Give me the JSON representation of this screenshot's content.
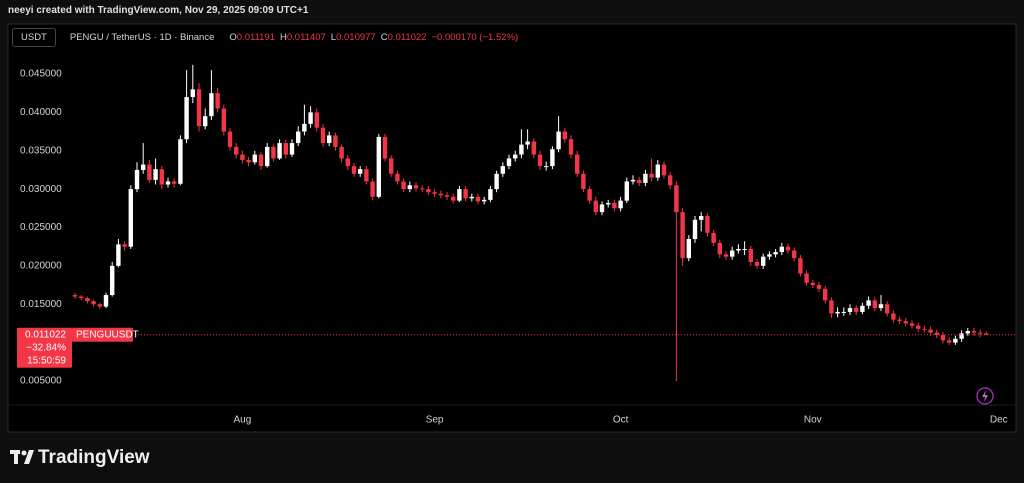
{
  "attribution": "neeyi created with TradingView.com, Nov 29, 2025 09:09 UTC+1",
  "logo": "TradingView",
  "chart_data": {
    "type": "candlestick",
    "title": "PENGU / TetherUS · 1D · Binance",
    "currency": "USDT",
    "symbol": "PENGUUSDT",
    "ohlc_labels": [
      "O",
      "H",
      "L",
      "C"
    ],
    "change": "−0.000170 (−1.52%)",
    "change_percent": "−32.84%",
    "countdown": "15:50:59",
    "up_color": "#ffffff",
    "down_color": "#f23645",
    "ylim": [
      0.00187,
      0.04943
    ],
    "yticks": [
      {
        "value": 0.045,
        "label": "0.045000"
      },
      {
        "value": 0.04,
        "label": "0.040000"
      },
      {
        "value": 0.035,
        "label": "0.035000"
      },
      {
        "value": 0.03,
        "label": "0.030000"
      },
      {
        "value": 0.025,
        "label": "0.025000"
      },
      {
        "value": 0.02,
        "label": "0.020000"
      },
      {
        "value": 0.015,
        "label": "0.015000"
      },
      {
        "value": 0.005,
        "label": "0.005000"
      }
    ],
    "grid": false,
    "categories": [
      null,
      null,
      null,
      null,
      null,
      null,
      null,
      null,
      null,
      null,
      null,
      null,
      null,
      null,
      null,
      null,
      null,
      null,
      null,
      null,
      null,
      null,
      null,
      null,
      null,
      null,
      null,
      "Aug",
      null,
      null,
      null,
      null,
      null,
      null,
      null,
      null,
      null,
      null,
      null,
      null,
      null,
      null,
      null,
      null,
      null,
      null,
      null,
      null,
      null,
      null,
      null,
      null,
      null,
      null,
      null,
      null,
      null,
      null,
      "Sep",
      null,
      null,
      null,
      null,
      null,
      null,
      null,
      null,
      null,
      null,
      null,
      null,
      null,
      null,
      null,
      null,
      null,
      null,
      null,
      null,
      null,
      null,
      null,
      null,
      null,
      null,
      null,
      null,
      null,
      "Oct",
      null,
      null,
      null,
      null,
      null,
      null,
      null,
      null,
      null,
      null,
      null,
      null,
      null,
      null,
      null,
      null,
      null,
      null,
      null,
      null,
      null,
      null,
      null,
      null,
      null,
      null,
      null,
      null,
      null,
      null,
      "Nov",
      null,
      null,
      null,
      null,
      null,
      null,
      null,
      null,
      null,
      null,
      null,
      null,
      null,
      null,
      null,
      null,
      null,
      null,
      null,
      null,
      null,
      null,
      null,
      null,
      null,
      null,
      null,
      null,
      null,
      "Dec"
    ],
    "open": [
      0.0162,
      0.016,
      0.0158,
      0.0154,
      0.015,
      0.0147,
      0.0162,
      0.02,
      0.0228,
      0.0225,
      0.03,
      0.0325,
      0.0332,
      0.0312,
      0.0326,
      0.0306,
      0.031,
      0.0307,
      0.0365,
      0.042,
      0.043,
      0.0382,
      0.0395,
      0.0425,
      0.0405,
      0.0375,
      0.0355,
      0.0345,
      0.0338,
      0.0335,
      0.0345,
      0.033,
      0.0355,
      0.034,
      0.036,
      0.0345,
      0.036,
      0.0375,
      0.0385,
      0.04,
      0.038,
      0.036,
      0.037,
      0.0355,
      0.034,
      0.033,
      0.032,
      0.0326,
      0.031,
      0.029,
      0.0368,
      0.034,
      0.032,
      0.031,
      0.03,
      0.0305,
      0.0301,
      0.03,
      0.0296,
      0.0294,
      0.0292,
      0.029,
      0.0285,
      0.03,
      0.0288,
      0.029,
      0.0284,
      0.0286,
      0.03,
      0.032,
      0.033,
      0.034,
      0.0345,
      0.0358,
      0.0362,
      0.0345,
      0.033,
      0.033,
      0.0352,
      0.0375,
      0.0365,
      0.0345,
      0.032,
      0.03,
      0.0285,
      0.027,
      0.028,
      0.0282,
      0.0275,
      0.0285,
      0.031,
      0.0312,
      0.0308,
      0.032,
      0.0315,
      0.0332,
      0.0318,
      0.0305,
      0.027,
      0.021,
      0.0235,
      0.026,
      0.0265,
      0.0243,
      0.023,
      0.0215,
      0.0212,
      0.022,
      0.0222,
      0.0222,
      0.0205,
      0.02,
      0.0212,
      0.0215,
      0.0218,
      0.0225,
      0.022,
      0.021,
      0.019,
      0.0178,
      0.0175,
      0.017,
      0.0155,
      0.0138,
      0.014,
      0.014,
      0.0145,
      0.014,
      0.0148,
      0.0155,
      0.0145,
      0.015,
      0.0138,
      0.013,
      0.0128,
      0.0125,
      0.0122,
      0.0118,
      0.0117,
      0.0113,
      0.011,
      0.0103,
      0.01,
      0.0105,
      0.0112,
      0.0115,
      0.0113,
      0.011191,
      null,
      null
    ],
    "high": [
      0.0165,
      0.0162,
      0.016,
      0.0156,
      0.0152,
      0.0165,
      0.0205,
      0.0235,
      0.0232,
      0.0305,
      0.0335,
      0.036,
      0.0338,
      0.034,
      0.033,
      0.0315,
      0.0314,
      0.037,
      0.0455,
      0.0462,
      0.0438,
      0.0405,
      0.0455,
      0.0432,
      0.041,
      0.038,
      0.036,
      0.035,
      0.0342,
      0.035,
      0.0348,
      0.036,
      0.0358,
      0.0365,
      0.0364,
      0.0365,
      0.0382,
      0.041,
      0.0408,
      0.0405,
      0.0385,
      0.0375,
      0.0374,
      0.0358,
      0.0344,
      0.0334,
      0.033,
      0.033,
      0.0314,
      0.0372,
      0.0372,
      0.0344,
      0.0324,
      0.0314,
      0.031,
      0.0309,
      0.0305,
      0.0304,
      0.03,
      0.0298,
      0.0296,
      0.0294,
      0.0304,
      0.0304,
      0.0294,
      0.0294,
      0.029,
      0.0304,
      0.0324,
      0.0335,
      0.0345,
      0.035,
      0.0378,
      0.0378,
      0.0366,
      0.035,
      0.0336,
      0.0356,
      0.0395,
      0.038,
      0.037,
      0.035,
      0.0324,
      0.0304,
      0.029,
      0.0284,
      0.0286,
      0.0286,
      0.029,
      0.0315,
      0.0318,
      0.0316,
      0.0325,
      0.034,
      0.0338,
      0.0336,
      0.0322,
      0.031,
      0.0275,
      0.024,
      0.0265,
      0.027,
      0.0269,
      0.0247,
      0.0234,
      0.0219,
      0.0225,
      0.0228,
      0.0232,
      0.0226,
      0.0209,
      0.0216,
      0.0219,
      0.0222,
      0.023,
      0.0229,
      0.0224,
      0.0214,
      0.0194,
      0.0182,
      0.0179,
      0.0174,
      0.0159,
      0.0146,
      0.0146,
      0.015,
      0.0149,
      0.0152,
      0.016,
      0.0159,
      0.0162,
      0.0154,
      0.0142,
      0.0134,
      0.0132,
      0.0129,
      0.0126,
      0.0122,
      0.0121,
      0.0117,
      0.0114,
      0.0107,
      0.0109,
      0.0116,
      0.0119,
      0.0119,
      0.0117,
      0.011407,
      null,
      null
    ],
    "low": [
      0.0157,
      0.0155,
      0.0151,
      0.0147,
      0.0144,
      0.0145,
      0.016,
      0.0198,
      0.022,
      0.0222,
      0.0296,
      0.032,
      0.0308,
      0.0306,
      0.03,
      0.0302,
      0.0302,
      0.0305,
      0.036,
      0.0412,
      0.0375,
      0.0378,
      0.039,
      0.04,
      0.037,
      0.035,
      0.034,
      0.0333,
      0.033,
      0.0332,
      0.0325,
      0.0328,
      0.0336,
      0.0338,
      0.034,
      0.0342,
      0.0356,
      0.037,
      0.038,
      0.0375,
      0.0355,
      0.0356,
      0.035,
      0.0335,
      0.0325,
      0.0316,
      0.0316,
      0.0306,
      0.0286,
      0.0288,
      0.0336,
      0.0316,
      0.0306,
      0.0296,
      0.0296,
      0.0297,
      0.0296,
      0.0292,
      0.029,
      0.0288,
      0.0286,
      0.0281,
      0.0283,
      0.0284,
      0.0284,
      0.028,
      0.028,
      0.0283,
      0.0296,
      0.0316,
      0.0326,
      0.0336,
      0.034,
      0.0352,
      0.034,
      0.0325,
      0.0324,
      0.0326,
      0.0348,
      0.036,
      0.034,
      0.0316,
      0.0296,
      0.0281,
      0.0266,
      0.0266,
      0.0276,
      0.0271,
      0.0271,
      0.0282,
      0.0306,
      0.0304,
      0.0304,
      0.031,
      0.0311,
      0.0314,
      0.03,
      0.005,
      0.02,
      0.0206,
      0.023,
      0.0245,
      0.0238,
      0.0226,
      0.021,
      0.0208,
      0.0208,
      0.0216,
      0.0214,
      0.02,
      0.0196,
      0.0196,
      0.0208,
      0.0211,
      0.0214,
      0.0216,
      0.0206,
      0.0186,
      0.0174,
      0.0171,
      0.0166,
      0.0151,
      0.0132,
      0.0133,
      0.0135,
      0.0136,
      0.0136,
      0.0137,
      0.0144,
      0.0141,
      0.0141,
      0.0134,
      0.0126,
      0.0124,
      0.0121,
      0.0118,
      0.0114,
      0.0113,
      0.0109,
      0.0106,
      0.0099,
      0.0097,
      0.0097,
      0.0101,
      0.0109,
      0.0109,
      0.0107,
      0.010977,
      null,
      null
    ],
    "close": [
      0.016,
      0.0158,
      0.0154,
      0.015,
      0.0147,
      0.0162,
      0.02,
      0.0228,
      0.0225,
      0.03,
      0.0325,
      0.0332,
      0.0312,
      0.0326,
      0.0306,
      0.031,
      0.0307,
      0.0365,
      0.042,
      0.043,
      0.0382,
      0.0395,
      0.0425,
      0.0405,
      0.0375,
      0.0355,
      0.0345,
      0.0338,
      0.0335,
      0.0345,
      0.033,
      0.0355,
      0.034,
      0.036,
      0.0345,
      0.036,
      0.0375,
      0.0385,
      0.04,
      0.038,
      0.036,
      0.037,
      0.0355,
      0.034,
      0.033,
      0.032,
      0.0326,
      0.031,
      0.029,
      0.0368,
      0.034,
      0.032,
      0.031,
      0.03,
      0.0305,
      0.0301,
      0.03,
      0.0296,
      0.0294,
      0.0292,
      0.029,
      0.0285,
      0.03,
      0.0288,
      0.029,
      0.0284,
      0.0286,
      0.03,
      0.032,
      0.033,
      0.034,
      0.0345,
      0.0358,
      0.0362,
      0.0345,
      0.033,
      0.033,
      0.0352,
      0.0375,
      0.0365,
      0.0345,
      0.032,
      0.03,
      0.0285,
      0.027,
      0.028,
      0.0282,
      0.0275,
      0.0285,
      0.031,
      0.0312,
      0.0308,
      0.032,
      0.0315,
      0.0332,
      0.0318,
      0.0305,
      0.027,
      0.021,
      0.0235,
      0.026,
      0.0265,
      0.0243,
      0.023,
      0.0215,
      0.0212,
      0.022,
      0.0222,
      0.0222,
      0.0205,
      0.02,
      0.0212,
      0.0215,
      0.0218,
      0.0225,
      0.022,
      0.021,
      0.019,
      0.0178,
      0.0175,
      0.017,
      0.0155,
      0.0138,
      0.014,
      0.014,
      0.0145,
      0.014,
      0.0148,
      0.0155,
      0.0145,
      0.015,
      0.0138,
      0.013,
      0.0128,
      0.0125,
      0.0122,
      0.0118,
      0.0117,
      0.0113,
      0.011,
      0.0103,
      0.01,
      0.0105,
      0.0112,
      0.0115,
      0.0113,
      0.0112,
      0.011022,
      null,
      null
    ]
  }
}
